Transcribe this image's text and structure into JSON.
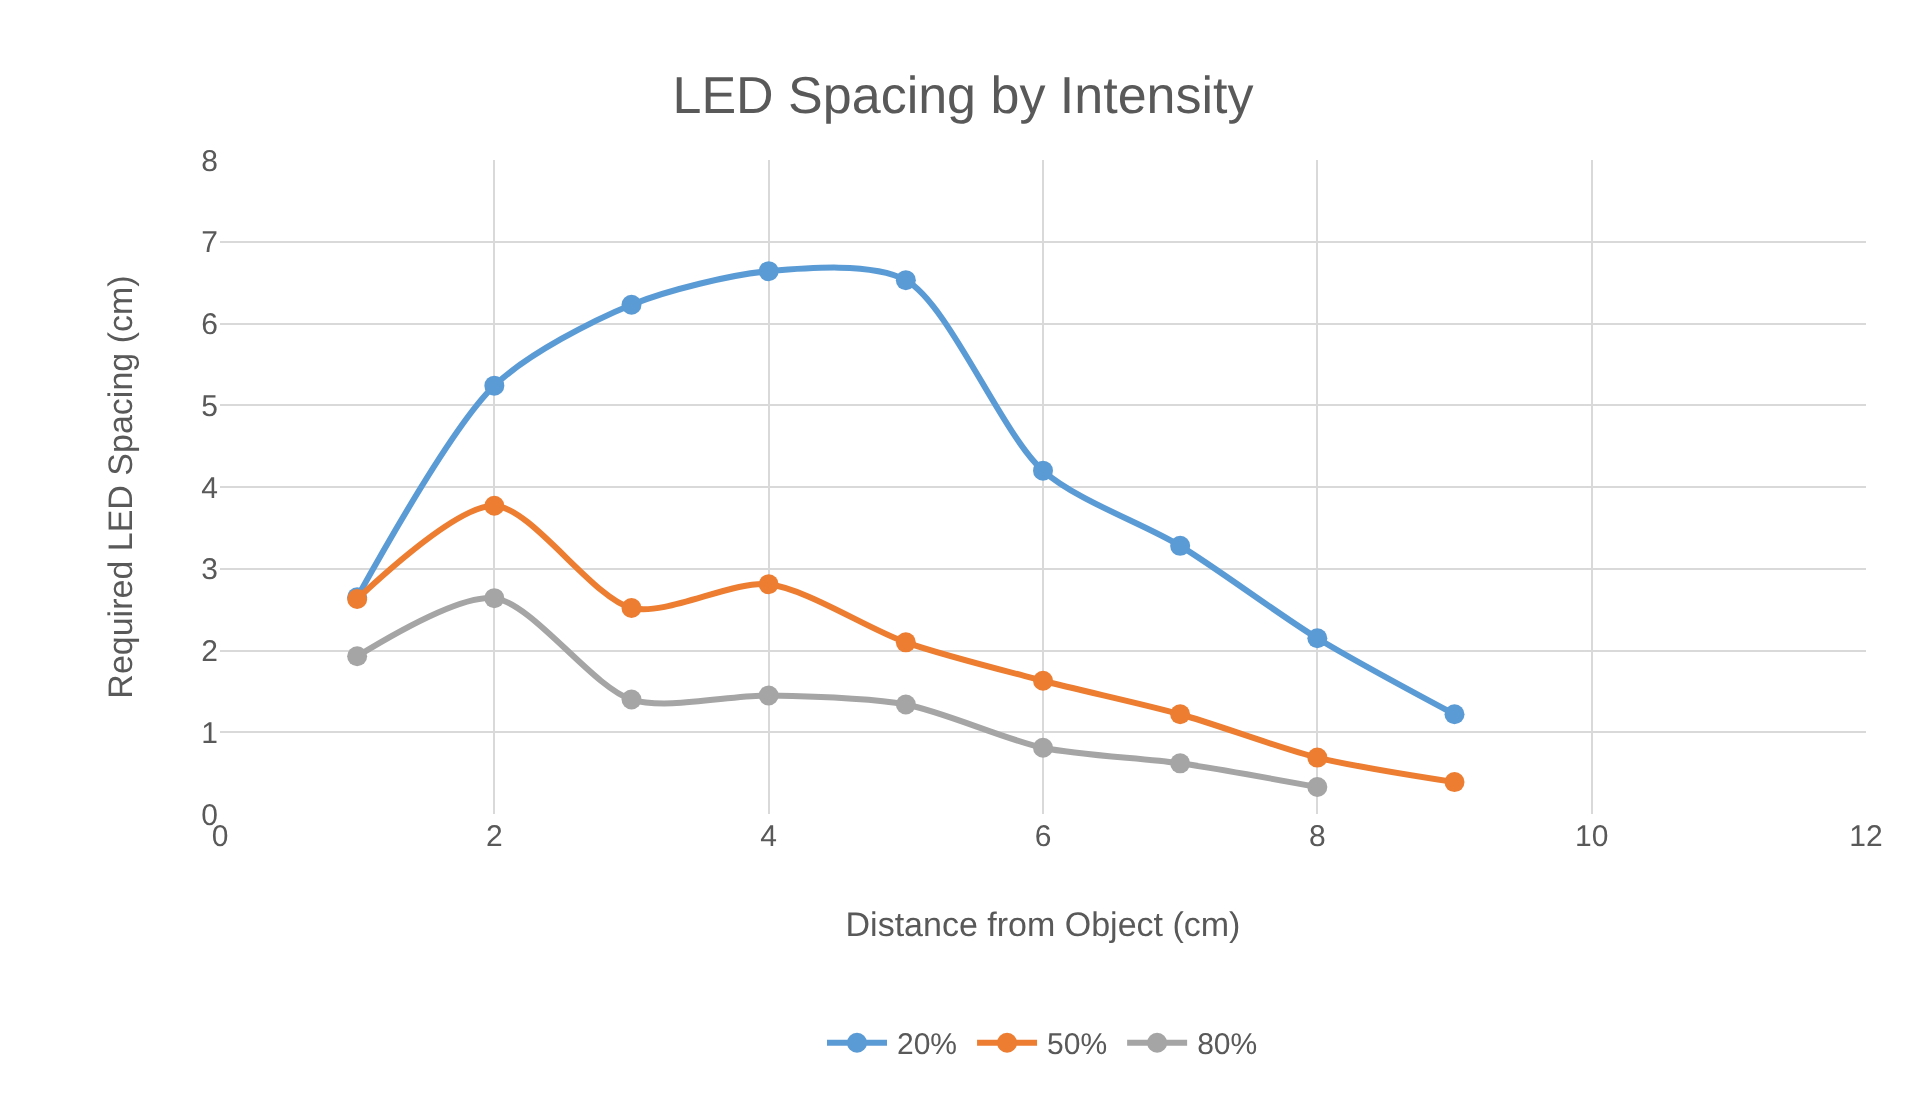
{
  "chart_data": {
    "type": "line",
    "title": "LED Spacing by Intensity",
    "xlabel": "Distance from Object (cm)",
    "ylabel": "Required LED Spacing (cm)",
    "x": [
      1,
      2,
      3,
      4,
      5,
      6,
      7,
      8,
      9
    ],
    "series": [
      {
        "name": "20%",
        "color": "#5b9bd5",
        "values": [
          2.65,
          5.24,
          6.23,
          6.64,
          6.53,
          4.2,
          3.28,
          2.15,
          1.22
        ]
      },
      {
        "name": "50%",
        "color": "#ed7d31",
        "values": [
          2.63,
          3.77,
          2.52,
          2.81,
          2.1,
          1.63,
          1.22,
          0.69,
          0.39
        ]
      },
      {
        "name": "80%",
        "color": "#a5a5a5",
        "x": [
          1,
          2,
          3,
          4,
          5,
          6,
          7,
          8
        ],
        "values": [
          1.93,
          2.64,
          1.4,
          1.45,
          1.34,
          0.81,
          0.62,
          0.33
        ]
      }
    ],
    "xlim": [
      0,
      12
    ],
    "xticks": [
      0,
      2,
      4,
      6,
      8,
      10,
      12
    ],
    "ylim": [
      0,
      8
    ],
    "yticks": [
      0,
      1,
      2,
      3,
      4,
      5,
      6,
      7,
      8
    ],
    "grid": true,
    "legend": "bottom",
    "marker": "circle",
    "line_style": "solid"
  }
}
